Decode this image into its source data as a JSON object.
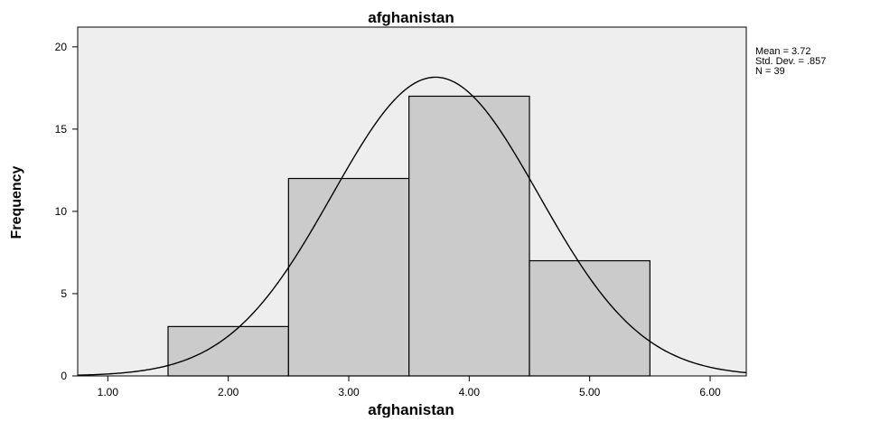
{
  "chart_data": {
    "type": "bar",
    "title": "afghanistan",
    "xlabel": "afghanistan",
    "ylabel": "Frequency",
    "xlim": [
      0.75,
      6.3
    ],
    "ylim": [
      0,
      21.2
    ],
    "x_ticks": [
      1.0,
      2.0,
      3.0,
      4.0,
      5.0,
      6.0
    ],
    "x_tick_labels": [
      "1.00",
      "2.00",
      "3.00",
      "4.00",
      "5.00",
      "6.00"
    ],
    "y_ticks": [
      0,
      5,
      10,
      15,
      20
    ],
    "y_tick_labels": [
      "0",
      "5",
      "10",
      "15",
      "20"
    ],
    "bins": [
      {
        "from": 1.5,
        "to": 2.5,
        "value": 3
      },
      {
        "from": 2.5,
        "to": 3.5,
        "value": 12
      },
      {
        "from": 3.5,
        "to": 4.5,
        "value": 17
      },
      {
        "from": 4.5,
        "to": 5.5,
        "value": 7
      }
    ],
    "normal_curve": {
      "mean": 3.72,
      "sd": 0.857,
      "n": 39,
      "bin_width": 1
    },
    "stats": [
      "Mean = 3.72",
      "Std. Dev. = .857",
      "N = 39"
    ],
    "grid": false,
    "legend": "none",
    "colors": {
      "plot_background": "#eeeeee",
      "bar_fill": "#cbcbcb",
      "bar_stroke": "#000000",
      "curve": "#000000"
    }
  }
}
